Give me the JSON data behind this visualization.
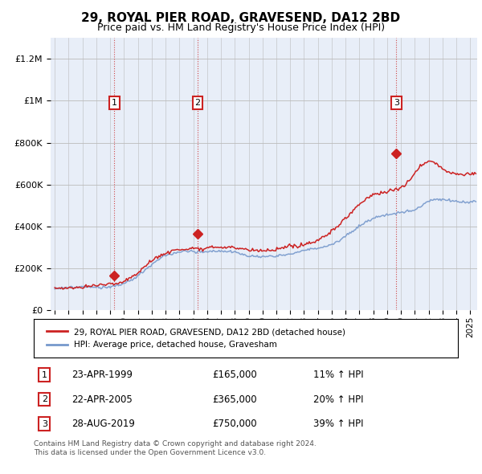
{
  "title": "29, ROYAL PIER ROAD, GRAVESEND, DA12 2BD",
  "subtitle": "Price paid vs. HM Land Registry's House Price Index (HPI)",
  "title_fontsize": 11,
  "subtitle_fontsize": 9,
  "ylabel_ticks": [
    "£0",
    "£200K",
    "£400K",
    "£600K",
    "£800K",
    "£1M",
    "£1.2M"
  ],
  "ytick_values": [
    0,
    200000,
    400000,
    600000,
    800000,
    1000000,
    1200000
  ],
  "ylim": [
    0,
    1300000
  ],
  "xlim_start": 1994.7,
  "xlim_end": 2025.5,
  "hpi_color": "#7799cc",
  "price_color": "#cc2222",
  "bg_color": "#e8eef8",
  "grid_color": "#cccccc",
  "sale_dates": [
    1999.31,
    2005.31,
    2019.66
  ],
  "sale_prices": [
    165000,
    365000,
    750000
  ],
  "sale_labels": [
    "1",
    "2",
    "3"
  ],
  "legend_entries": [
    "29, ROYAL PIER ROAD, GRAVESEND, DA12 2BD (detached house)",
    "HPI: Average price, detached house, Gravesham"
  ],
  "table_rows": [
    [
      "1",
      "23-APR-1999",
      "£165,000",
      "11% ↑ HPI"
    ],
    [
      "2",
      "22-APR-2005",
      "£365,000",
      "20% ↑ HPI"
    ],
    [
      "3",
      "28-AUG-2019",
      "£750,000",
      "39% ↑ HPI"
    ]
  ],
  "footnote": "Contains HM Land Registry data © Crown copyright and database right 2024.\nThis data is licensed under the Open Government Licence v3.0.",
  "xtick_years": [
    1995,
    1996,
    1997,
    1998,
    1999,
    2000,
    2001,
    2002,
    2003,
    2004,
    2005,
    2006,
    2007,
    2008,
    2009,
    2010,
    2011,
    2012,
    2013,
    2014,
    2015,
    2016,
    2017,
    2018,
    2019,
    2020,
    2021,
    2022,
    2023,
    2024,
    2025
  ]
}
